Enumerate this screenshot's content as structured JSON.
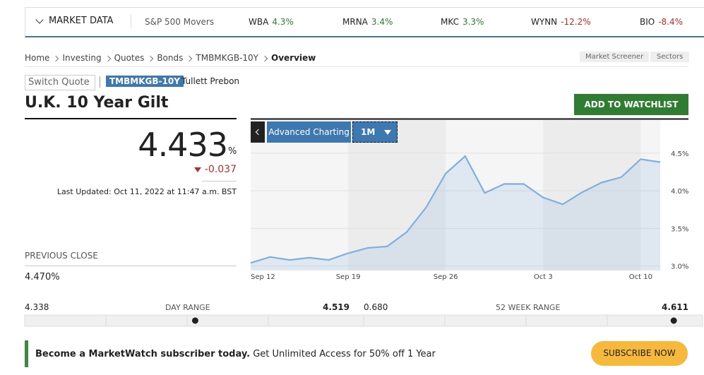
{
  "market_bar": {
    "label": "MARKET DATA",
    "group": "S&P 500 Movers",
    "movers": [
      {
        "symbol": "WBA",
        "change": "4.3%"
      },
      {
        "symbol": "MRNA",
        "change": "3.4%"
      },
      {
        "symbol": "MKC",
        "change": "3.3%"
      },
      {
        "symbol": "WYNN",
        "change": "-12.2%"
      },
      {
        "symbol": "BIO",
        "change": "-8.4%"
      }
    ]
  },
  "breadcrumb": [
    "Home",
    "Investing",
    "Quotes",
    "Bonds",
    "TMBMKGB-10Y",
    "Overview"
  ],
  "tools": [
    "Market Screener",
    "Sectors"
  ],
  "switch_quote": "Switch Quote",
  "ticker": "TMBMKGB-10Y",
  "source": "Tullett Prebon",
  "title": "U.K. 10 Year Gilt",
  "watchlist_button": "ADD TO WATCHLIST",
  "quote": {
    "price": 4.433,
    "unit": "%",
    "change": -0.037,
    "last_updated": "Last Updated: Oct 11, 2022 at 11:47 a.m. BST"
  },
  "previous_close": {
    "label": "PREVIOUS CLOSE",
    "value": "4.470%"
  },
  "chart": {
    "type": "line",
    "advanced": "Advanced Charting",
    "period": "1M",
    "color": "#7fb0dd",
    "categories": [
      "Sep 12",
      null,
      null,
      null,
      null,
      "Sep 19",
      null,
      null,
      null,
      null,
      "Sep 26",
      null,
      null,
      null,
      null,
      "Oct 3",
      null,
      null,
      null,
      null,
      "Oct 10",
      null
    ],
    "values": [
      3.04,
      3.12,
      3.08,
      3.11,
      3.08,
      3.17,
      3.24,
      3.26,
      3.45,
      3.78,
      4.23,
      4.46,
      3.97,
      4.09,
      4.09,
      3.91,
      3.82,
      3.98,
      4.11,
      4.18,
      4.42,
      4.38
    ],
    "ylim": [
      2.94,
      4.94
    ],
    "yticks": [
      {
        "value": 3,
        "label": "3.0%"
      },
      {
        "value": 3.5,
        "label": "3.5%"
      },
      {
        "value": 4,
        "label": "4.0%"
      },
      {
        "value": 4.5,
        "label": "4.5%"
      }
    ]
  },
  "day_range": {
    "low": 4.338,
    "label": "DAY RANGE",
    "high": 4.519
  },
  "week52_range": {
    "low": {
      "value": 0.68,
      "label": "0.680"
    },
    "label": "52 WEEK RANGE",
    "high": 4.611
  },
  "promo": {
    "bold": "Become a MarketWatch subscriber today.",
    "text": " Get Unlimited Access for 50% off 1 Year",
    "button": "SUBSCRIBE NOW"
  }
}
